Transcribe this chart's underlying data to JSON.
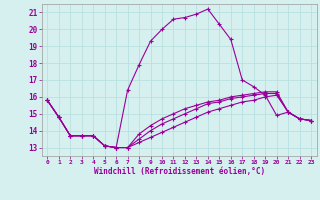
{
  "xlabel": "Windchill (Refroidissement éolien,°C)",
  "bg_color": "#d6f0f0",
  "grid_color": "#b8e0e0",
  "line_color": "#990099",
  "x_ticks": [
    0,
    1,
    2,
    3,
    4,
    5,
    6,
    7,
    8,
    9,
    10,
    11,
    12,
    13,
    14,
    15,
    16,
    17,
    18,
    19,
    20,
    21,
    22,
    23
  ],
  "y_ticks": [
    13,
    14,
    15,
    16,
    17,
    18,
    19,
    20,
    21
  ],
  "ylim": [
    12.5,
    21.5
  ],
  "xlim": [
    -0.5,
    23.5
  ],
  "series": [
    [
      15.8,
      14.8,
      13.7,
      13.7,
      13.7,
      13.1,
      13.0,
      16.4,
      17.9,
      19.3,
      20.0,
      20.6,
      20.7,
      20.9,
      21.2,
      20.3,
      19.4,
      17.0,
      16.6,
      16.1,
      14.9,
      15.1,
      14.7,
      14.6
    ],
    [
      15.8,
      14.8,
      13.7,
      13.7,
      13.7,
      13.1,
      13.0,
      13.0,
      13.3,
      13.6,
      13.9,
      14.2,
      14.5,
      14.8,
      15.1,
      15.3,
      15.5,
      15.7,
      15.8,
      16.0,
      16.1,
      15.1,
      14.7,
      14.6
    ],
    [
      15.8,
      14.8,
      13.7,
      13.7,
      13.7,
      13.1,
      13.0,
      13.0,
      13.5,
      14.0,
      14.4,
      14.7,
      15.0,
      15.3,
      15.6,
      15.7,
      15.9,
      16.0,
      16.1,
      16.2,
      16.2,
      15.1,
      14.7,
      14.6
    ],
    [
      15.8,
      14.8,
      13.7,
      13.7,
      13.7,
      13.1,
      13.0,
      13.0,
      13.8,
      14.3,
      14.7,
      15.0,
      15.3,
      15.5,
      15.7,
      15.8,
      16.0,
      16.1,
      16.2,
      16.3,
      16.3,
      15.1,
      14.7,
      14.6
    ]
  ]
}
